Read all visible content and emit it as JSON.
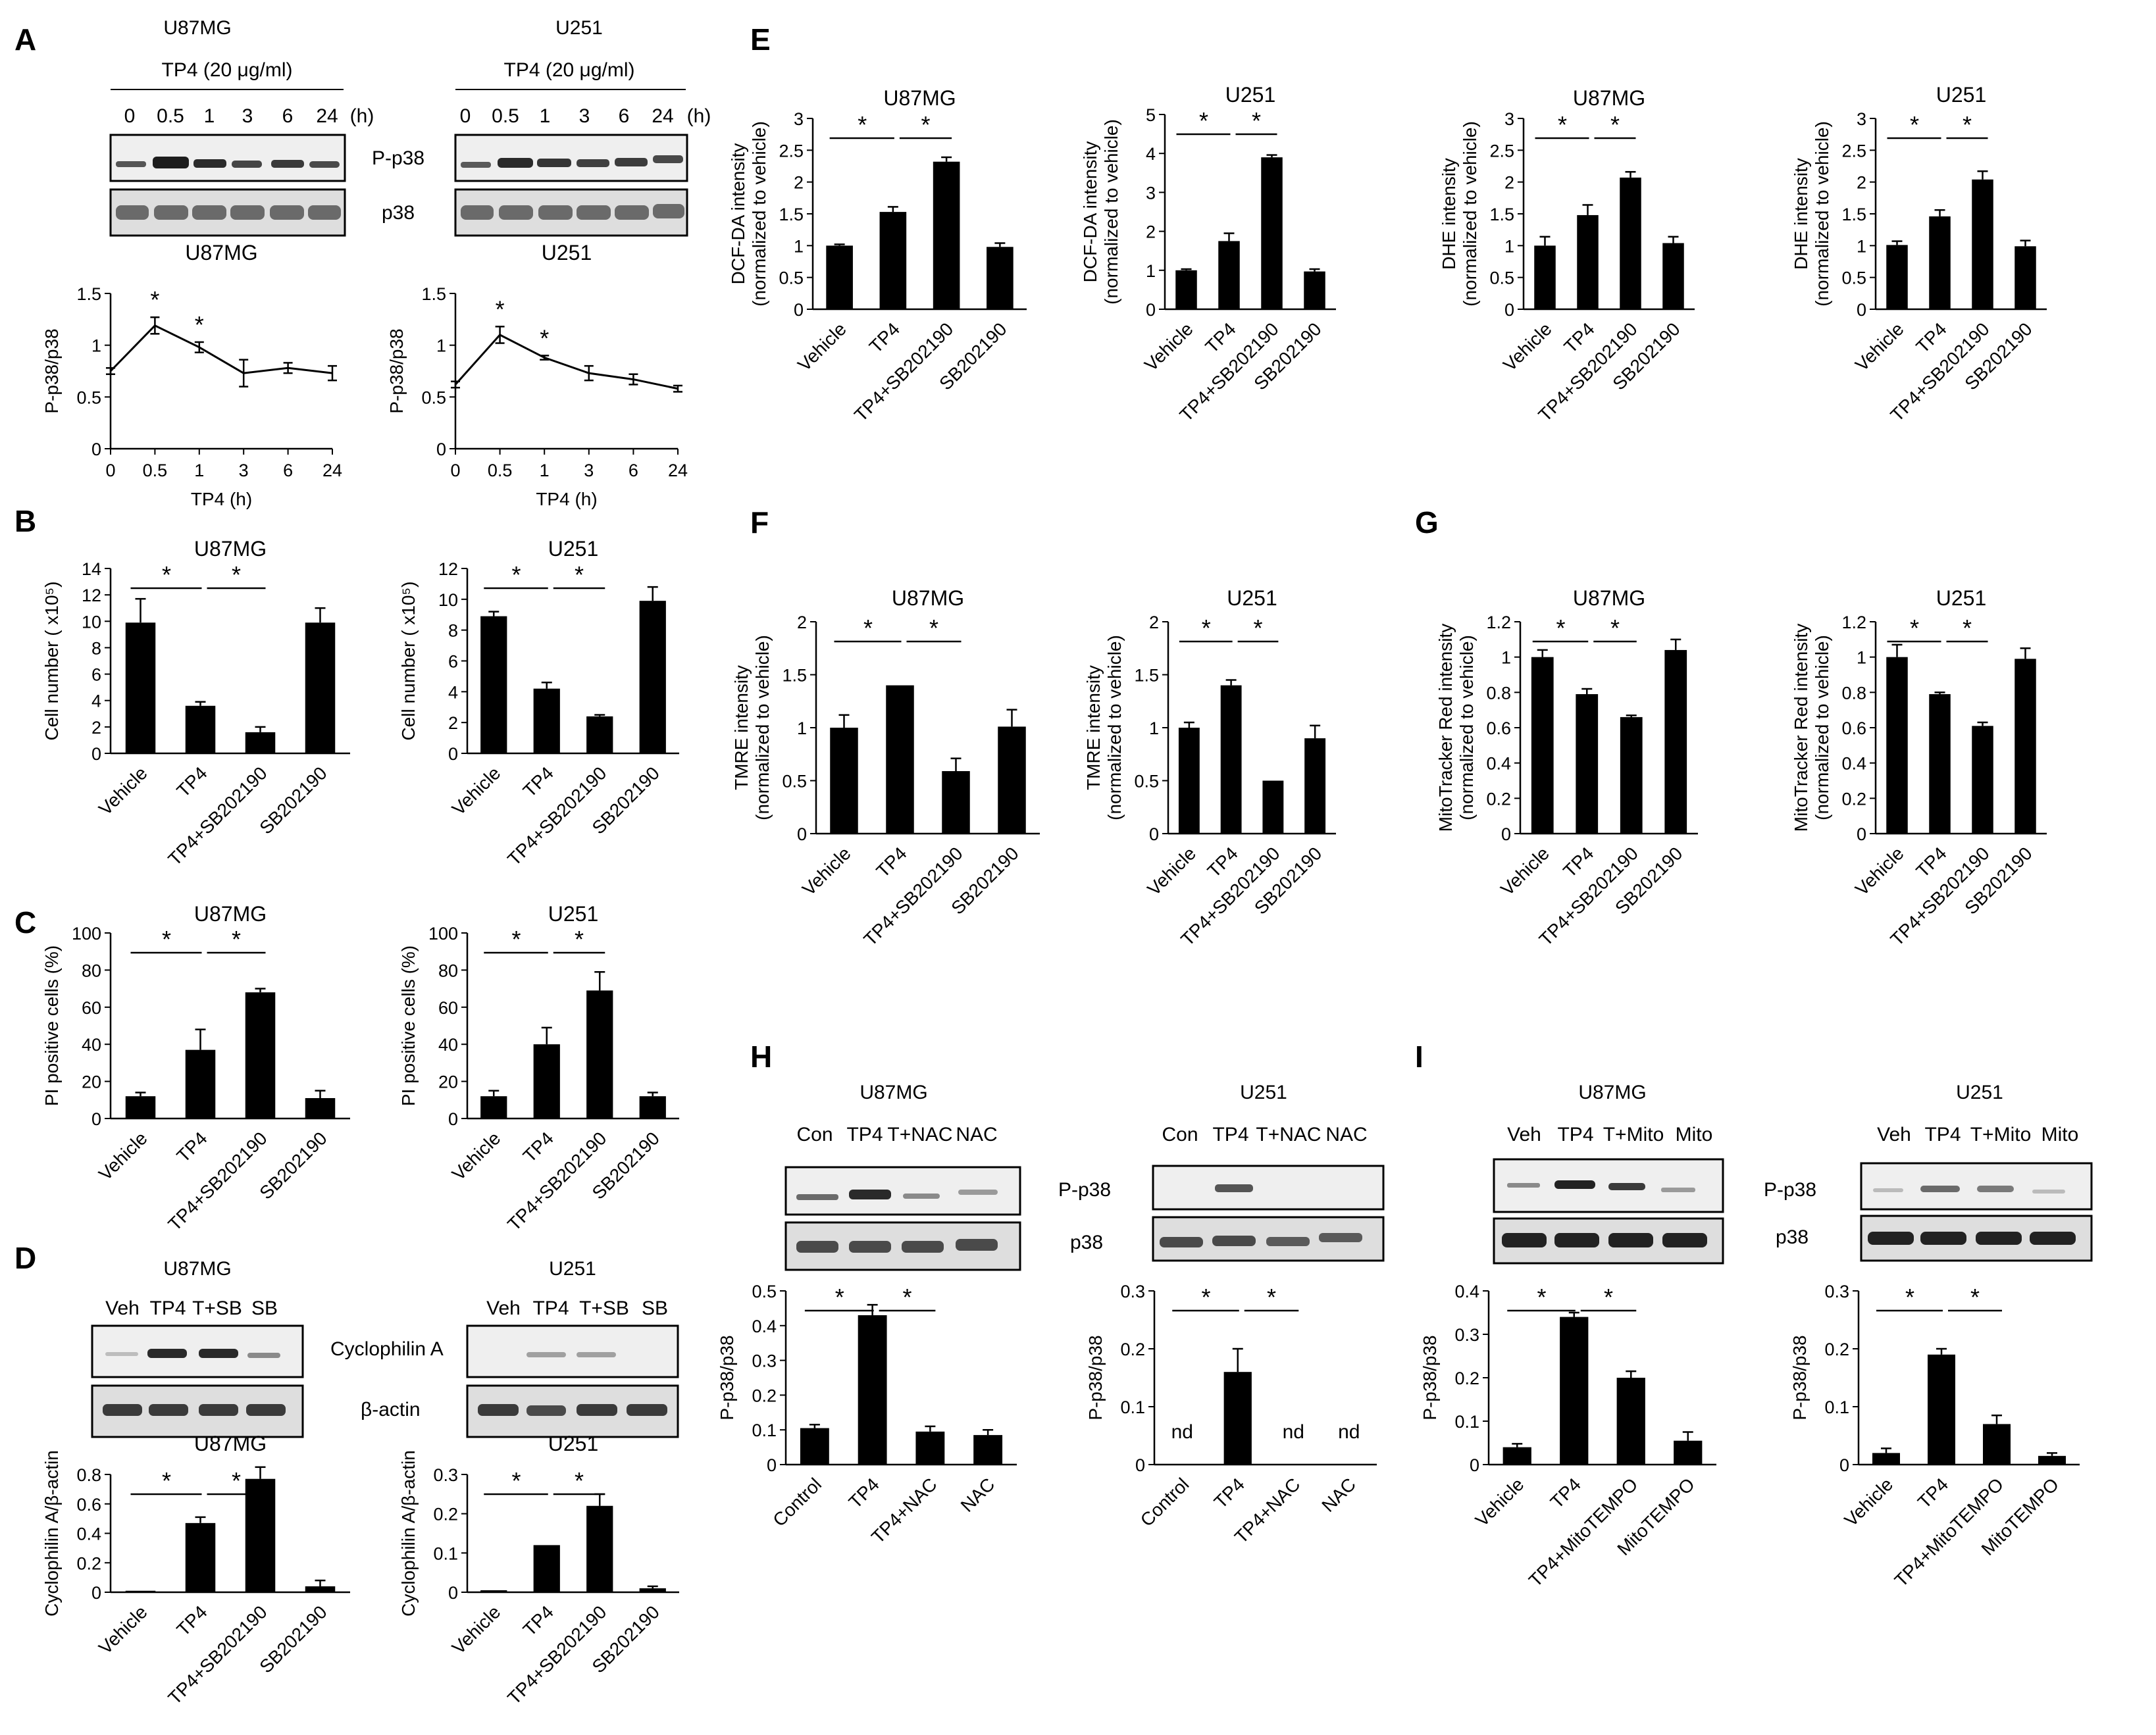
{
  "panel_letters": [
    "A",
    "B",
    "C",
    "D",
    "E",
    "F",
    "G",
    "H",
    "I"
  ],
  "blot_captions": [
    {
      "title": "U87MG",
      "treatment": "TP4 (20 μg/ml)",
      "lanes": [
        "0",
        "0.5",
        "1",
        "3",
        "6",
        "24"
      ],
      "unit": "(h)",
      "rows": [
        "P-p38",
        "p38"
      ]
    },
    {
      "title": "U251",
      "treatment": "TP4 (20 μg/ml)",
      "lanes": [
        "0",
        "0.5",
        "1",
        "3",
        "6",
        "24"
      ],
      "unit": "(h)",
      "rows": []
    },
    {
      "title": "U87MG",
      "lanes": [
        "Veh",
        "TP4",
        "T+SB",
        "SB"
      ],
      "rows": [
        "Cyclophilin A",
        "β-actin"
      ]
    },
    {
      "title": "U251",
      "lanes": [
        "Veh",
        "TP4",
        "T+SB",
        "SB"
      ],
      "rows": []
    },
    {
      "title": "U87MG",
      "lanes": [
        "Con",
        "TP4",
        "T+NAC",
        "NAC"
      ],
      "rows": []
    },
    {
      "title": "U251",
      "lanes": [
        "Con",
        "TP4",
        "T+NAC",
        "NAC"
      ],
      "rows": [
        "P-p38",
        "p38"
      ]
    },
    {
      "title": "U87MG",
      "lanes": [
        "Veh",
        "TP4",
        "T+Mito",
        "Mito"
      ],
      "rows": []
    },
    {
      "title": "U251",
      "lanes": [
        "Veh",
        "TP4",
        "T+Mito",
        "Mito"
      ],
      "rows": [
        "P-p38",
        "p38"
      ]
    }
  ],
  "chart_data": [
    {
      "panel": "A",
      "type": "line",
      "title": "U87MG",
      "x": [
        "0",
        "0.5",
        "1",
        "3",
        "6",
        "24"
      ],
      "values": [
        0.75,
        1.19,
        0.98,
        0.73,
        0.78,
        0.73
      ],
      "errors": [
        0.03,
        0.08,
        0.05,
        0.13,
        0.05,
        0.07
      ],
      "ylabel": "P-p38/p38",
      "xlabel": "TP4 (h)",
      "ylim": [
        0,
        1.5
      ],
      "yticks": [
        "0",
        "0.5",
        "1",
        "1.5"
      ],
      "stars": [
        1,
        2
      ]
    },
    {
      "panel": "A",
      "type": "line",
      "title": "U251",
      "x": [
        "0",
        "0.5",
        "1",
        "3",
        "6",
        "24"
      ],
      "values": [
        0.62,
        1.1,
        0.88,
        0.73,
        0.67,
        0.58
      ],
      "errors": [
        0.03,
        0.08,
        0.02,
        0.07,
        0.05,
        0.03
      ],
      "ylabel": "P-p38/p38",
      "xlabel": "TP4 (h)",
      "ylim": [
        0,
        1.5
      ],
      "yticks": [
        "0",
        "0.5",
        "1",
        "1.5"
      ],
      "stars": [
        1,
        2
      ]
    },
    {
      "panel": "B",
      "type": "bar",
      "title": "U87MG",
      "categories": [
        "Vehicle",
        "TP4",
        "TP4+SB202190",
        "SB202190"
      ],
      "values": [
        9.9,
        3.6,
        1.6,
        9.9
      ],
      "errors": [
        1.8,
        0.3,
        0.4,
        1.1
      ],
      "ylabel": "Cell number ( x10⁵)",
      "ylim": [
        0,
        14
      ],
      "yticks": [
        "0",
        "2",
        "4",
        "6",
        "8",
        "10",
        "12",
        "14"
      ],
      "star_labels": [
        "*",
        "*"
      ]
    },
    {
      "panel": "B",
      "type": "bar",
      "title": "U251",
      "categories": [
        "Vehicle",
        "TP4",
        "TP4+SB202190",
        "SB202190"
      ],
      "values": [
        8.9,
        4.2,
        2.4,
        9.9
      ],
      "errors": [
        0.3,
        0.4,
        0.1,
        0.9
      ],
      "ylabel": "Cell number ( x10⁵)",
      "ylim": [
        0,
        12
      ],
      "yticks": [
        "0",
        "2",
        "4",
        "6",
        "8",
        "10",
        "12"
      ],
      "star_labels": [
        "*",
        "*"
      ]
    },
    {
      "panel": "C",
      "type": "bar",
      "title": "U87MG",
      "categories": [
        "Vehicle",
        "TP4",
        "TP4+SB202190",
        "SB202190"
      ],
      "values": [
        12,
        37,
        68,
        11
      ],
      "errors": [
        2,
        11,
        2,
        4
      ],
      "ylabel": "PI positive cells (%)",
      "ylim": [
        0,
        100
      ],
      "yticks": [
        "0",
        "20",
        "40",
        "60",
        "80",
        "100"
      ],
      "star_labels": [
        "*",
        "*"
      ]
    },
    {
      "panel": "C",
      "type": "bar",
      "title": "U251",
      "categories": [
        "Vehicle",
        "TP4",
        "TP4+SB202190",
        "SB202190"
      ],
      "values": [
        12,
        40,
        69,
        12
      ],
      "errors": [
        3,
        9,
        10,
        2
      ],
      "ylabel": "PI positive cells (%)",
      "ylim": [
        0,
        100
      ],
      "yticks": [
        "0",
        "20",
        "40",
        "60",
        "80",
        "100"
      ],
      "star_labels": [
        "*",
        "*"
      ]
    },
    {
      "panel": "D",
      "type": "bar",
      "title": "U87MG",
      "categories": [
        "Vehicle",
        "TP4",
        "TP4+SB202190",
        "SB202190"
      ],
      "values": [
        0.01,
        0.47,
        0.77,
        0.04
      ],
      "errors": [
        0,
        0.04,
        0.08,
        0.04
      ],
      "ylabel": "Cyclophilin A/β-actin",
      "ylim": [
        0,
        0.8
      ],
      "yticks": [
        "0",
        "0.2",
        "0.4",
        "0.6",
        "0.8"
      ],
      "star_labels": [
        "*",
        "*"
      ]
    },
    {
      "panel": "D",
      "type": "bar",
      "title": "U251",
      "categories": [
        "Vehicle",
        "TP4",
        "TP4+SB202190",
        "SB202190"
      ],
      "values": [
        0.005,
        0.12,
        0.22,
        0.01
      ],
      "errors": [
        0,
        0,
        0.03,
        0.005
      ],
      "ylabel": "Cyclophilin A/β-actin",
      "ylim": [
        0,
        0.3
      ],
      "yticks": [
        "0",
        "0.1",
        "0.2",
        "0.3"
      ],
      "star_labels": [
        "*",
        "*"
      ]
    },
    {
      "panel": "E",
      "type": "bar",
      "title": "U87MG",
      "categories": [
        "Vehicle",
        "TP4",
        "TP4+SB202190",
        "SB202190"
      ],
      "values": [
        1.0,
        1.53,
        2.32,
        0.98
      ],
      "errors": [
        0.02,
        0.08,
        0.07,
        0.06
      ],
      "ylabel": "DCF-DA intensity (normalized to vehicle)",
      "ylim": [
        0,
        3
      ],
      "yticks": [
        "0",
        "0.5",
        "1",
        "1.5",
        "2",
        "2.5",
        "3"
      ],
      "star_labels": [
        "*",
        "*"
      ]
    },
    {
      "panel": "E",
      "type": "bar",
      "title": "U251",
      "categories": [
        "Vehicle",
        "TP4",
        "TP4+SB202190",
        "SB202190"
      ],
      "values": [
        1.0,
        1.75,
        3.9,
        0.97
      ],
      "errors": [
        0.03,
        0.2,
        0.06,
        0.06
      ],
      "ylabel": "DCF-DA intensity (normalized to vehicle)",
      "ylim": [
        0,
        5
      ],
      "yticks": [
        "0",
        "1",
        "2",
        "3",
        "4",
        "5"
      ],
      "star_labels": [
        "*",
        "*"
      ]
    },
    {
      "panel": "E",
      "type": "bar",
      "title": "U87MG",
      "categories": [
        "Vehicle",
        "TP4",
        "TP4+SB202190",
        "SB202190"
      ],
      "values": [
        1.0,
        1.48,
        2.07,
        1.04
      ],
      "errors": [
        0.14,
        0.16,
        0.09,
        0.1
      ],
      "ylabel": "DHE intensity (normalized to vehicle)",
      "ylim": [
        0,
        3
      ],
      "yticks": [
        "0",
        "0.5",
        "1",
        "1.5",
        "2",
        "2.5",
        "3"
      ],
      "star_labels": [
        "*",
        "*"
      ]
    },
    {
      "panel": "E",
      "type": "bar",
      "title": "U251",
      "categories": [
        "Vehicle",
        "TP4",
        "TP4+SB202190",
        "SB202190"
      ],
      "values": [
        1.01,
        1.46,
        2.04,
        0.99
      ],
      "errors": [
        0.06,
        0.1,
        0.13,
        0.09
      ],
      "ylabel": "DHE intensity (normalized to vehicle)",
      "ylim": [
        0,
        3
      ],
      "yticks": [
        "0",
        "0.5",
        "1",
        "1.5",
        "2",
        "2.5",
        "3"
      ],
      "star_labels": [
        "*",
        "*"
      ]
    },
    {
      "panel": "F",
      "type": "bar",
      "title": "U87MG",
      "categories": [
        "Vehicle",
        "TP4",
        "TP4+SB202190",
        "SB202190"
      ],
      "values": [
        1.0,
        1.4,
        0.59,
        1.01
      ],
      "errors": [
        0.12,
        0,
        0.12,
        0.16
      ],
      "ylabel": "TMRE intensity (normalized to vehicle)",
      "ylim": [
        0,
        2
      ],
      "yticks": [
        "0",
        "0.5",
        "1",
        "1.5",
        "2"
      ],
      "star_labels": [
        "*",
        "*"
      ]
    },
    {
      "panel": "F",
      "type": "bar",
      "title": "U251",
      "categories": [
        "Vehicle",
        "TP4",
        "TP4+SB202190",
        "SB202190"
      ],
      "values": [
        1.0,
        1.4,
        0.5,
        0.9
      ],
      "errors": [
        0.05,
        0.05,
        0,
        0.12
      ],
      "ylabel": "TMRE intensity (normalized to vehicle)",
      "ylim": [
        0,
        2
      ],
      "yticks": [
        "0",
        "0.5",
        "1",
        "1.5",
        "2"
      ],
      "star_labels": [
        "*",
        "*"
      ]
    },
    {
      "panel": "G",
      "type": "bar",
      "title": "U87MG",
      "categories": [
        "Vehicle",
        "TP4",
        "TP4+SB202190",
        "SB202190"
      ],
      "values": [
        1.0,
        0.79,
        0.66,
        1.04
      ],
      "errors": [
        0.04,
        0.03,
        0.01,
        0.06
      ],
      "ylabel": "MitoTracker Red intensity (normalized to vehicle)",
      "ylim": [
        0,
        1.2
      ],
      "yticks": [
        "0",
        "0.2",
        "0.4",
        "0.6",
        "0.8",
        "1",
        "1.2"
      ],
      "star_labels": [
        "*",
        "*"
      ]
    },
    {
      "panel": "G",
      "type": "bar",
      "title": "U251",
      "categories": [
        "Vehicle",
        "TP4",
        "TP4+SB202190",
        "SB202190"
      ],
      "values": [
        1.0,
        0.79,
        0.61,
        0.99
      ],
      "errors": [
        0.07,
        0.01,
        0.02,
        0.06
      ],
      "ylabel": "MitoTracker Red intensity (normalized to vehicle)",
      "ylim": [
        0,
        1.2
      ],
      "yticks": [
        "0",
        "0.2",
        "0.4",
        "0.6",
        "0.8",
        "1",
        "1.2"
      ],
      "star_labels": [
        "*",
        "*"
      ]
    },
    {
      "panel": "H",
      "type": "bar",
      "title": "U87MG",
      "categories": [
        "Control",
        "TP4",
        "TP4+NAC",
        "NAC"
      ],
      "values": [
        0.105,
        0.43,
        0.095,
        0.085
      ],
      "errors": [
        0.01,
        0.03,
        0.015,
        0.015
      ],
      "ylabel": "P-p38/p38",
      "ylim": [
        0,
        0.5
      ],
      "yticks": [
        "0",
        "0.1",
        "0.2",
        "0.3",
        "0.4",
        "0.5"
      ],
      "star_labels": [
        "*",
        "*"
      ]
    },
    {
      "panel": "H",
      "type": "bar",
      "title": "U251",
      "categories": [
        "Control",
        "TP4",
        "TP4+NAC",
        "NAC"
      ],
      "values": [
        0,
        0.16,
        0,
        0
      ],
      "errors": [
        0,
        0.04,
        0,
        0
      ],
      "ylabel": "P-p38/p38",
      "ylim": [
        0,
        0.3
      ],
      "yticks": [
        "0",
        "0.1",
        "0.2",
        "0.3"
      ],
      "star_labels": [
        "*",
        "*"
      ],
      "nd": [
        0,
        2,
        3
      ],
      "nd_label": "nd"
    },
    {
      "panel": "I",
      "type": "bar",
      "title": "U87MG",
      "categories": [
        "Vehicle",
        "TP4",
        "TP4+MitoTEMPO",
        "MitoTEMPO"
      ],
      "values": [
        0.04,
        0.34,
        0.2,
        0.055
      ],
      "errors": [
        0.008,
        0.01,
        0.015,
        0.02
      ],
      "ylabel": "P-p38/p38",
      "ylim": [
        0,
        0.4
      ],
      "yticks": [
        "0",
        "0.1",
        "0.2",
        "0.3",
        "0.4"
      ],
      "star_labels": [
        "*",
        "*"
      ]
    },
    {
      "panel": "I",
      "type": "bar",
      "title": "U251",
      "categories": [
        "Vehicle",
        "TP4",
        "TP4+MitoTEMPO",
        "MitoTEMPO"
      ],
      "values": [
        0.02,
        0.19,
        0.07,
        0.015
      ],
      "errors": [
        0.008,
        0.01,
        0.015,
        0.005
      ],
      "ylabel": "P-p38/p38",
      "ylim": [
        0,
        0.3
      ],
      "yticks": [
        "0",
        "0.1",
        "0.2",
        "0.3"
      ],
      "star_labels": [
        "*",
        "*"
      ]
    }
  ]
}
